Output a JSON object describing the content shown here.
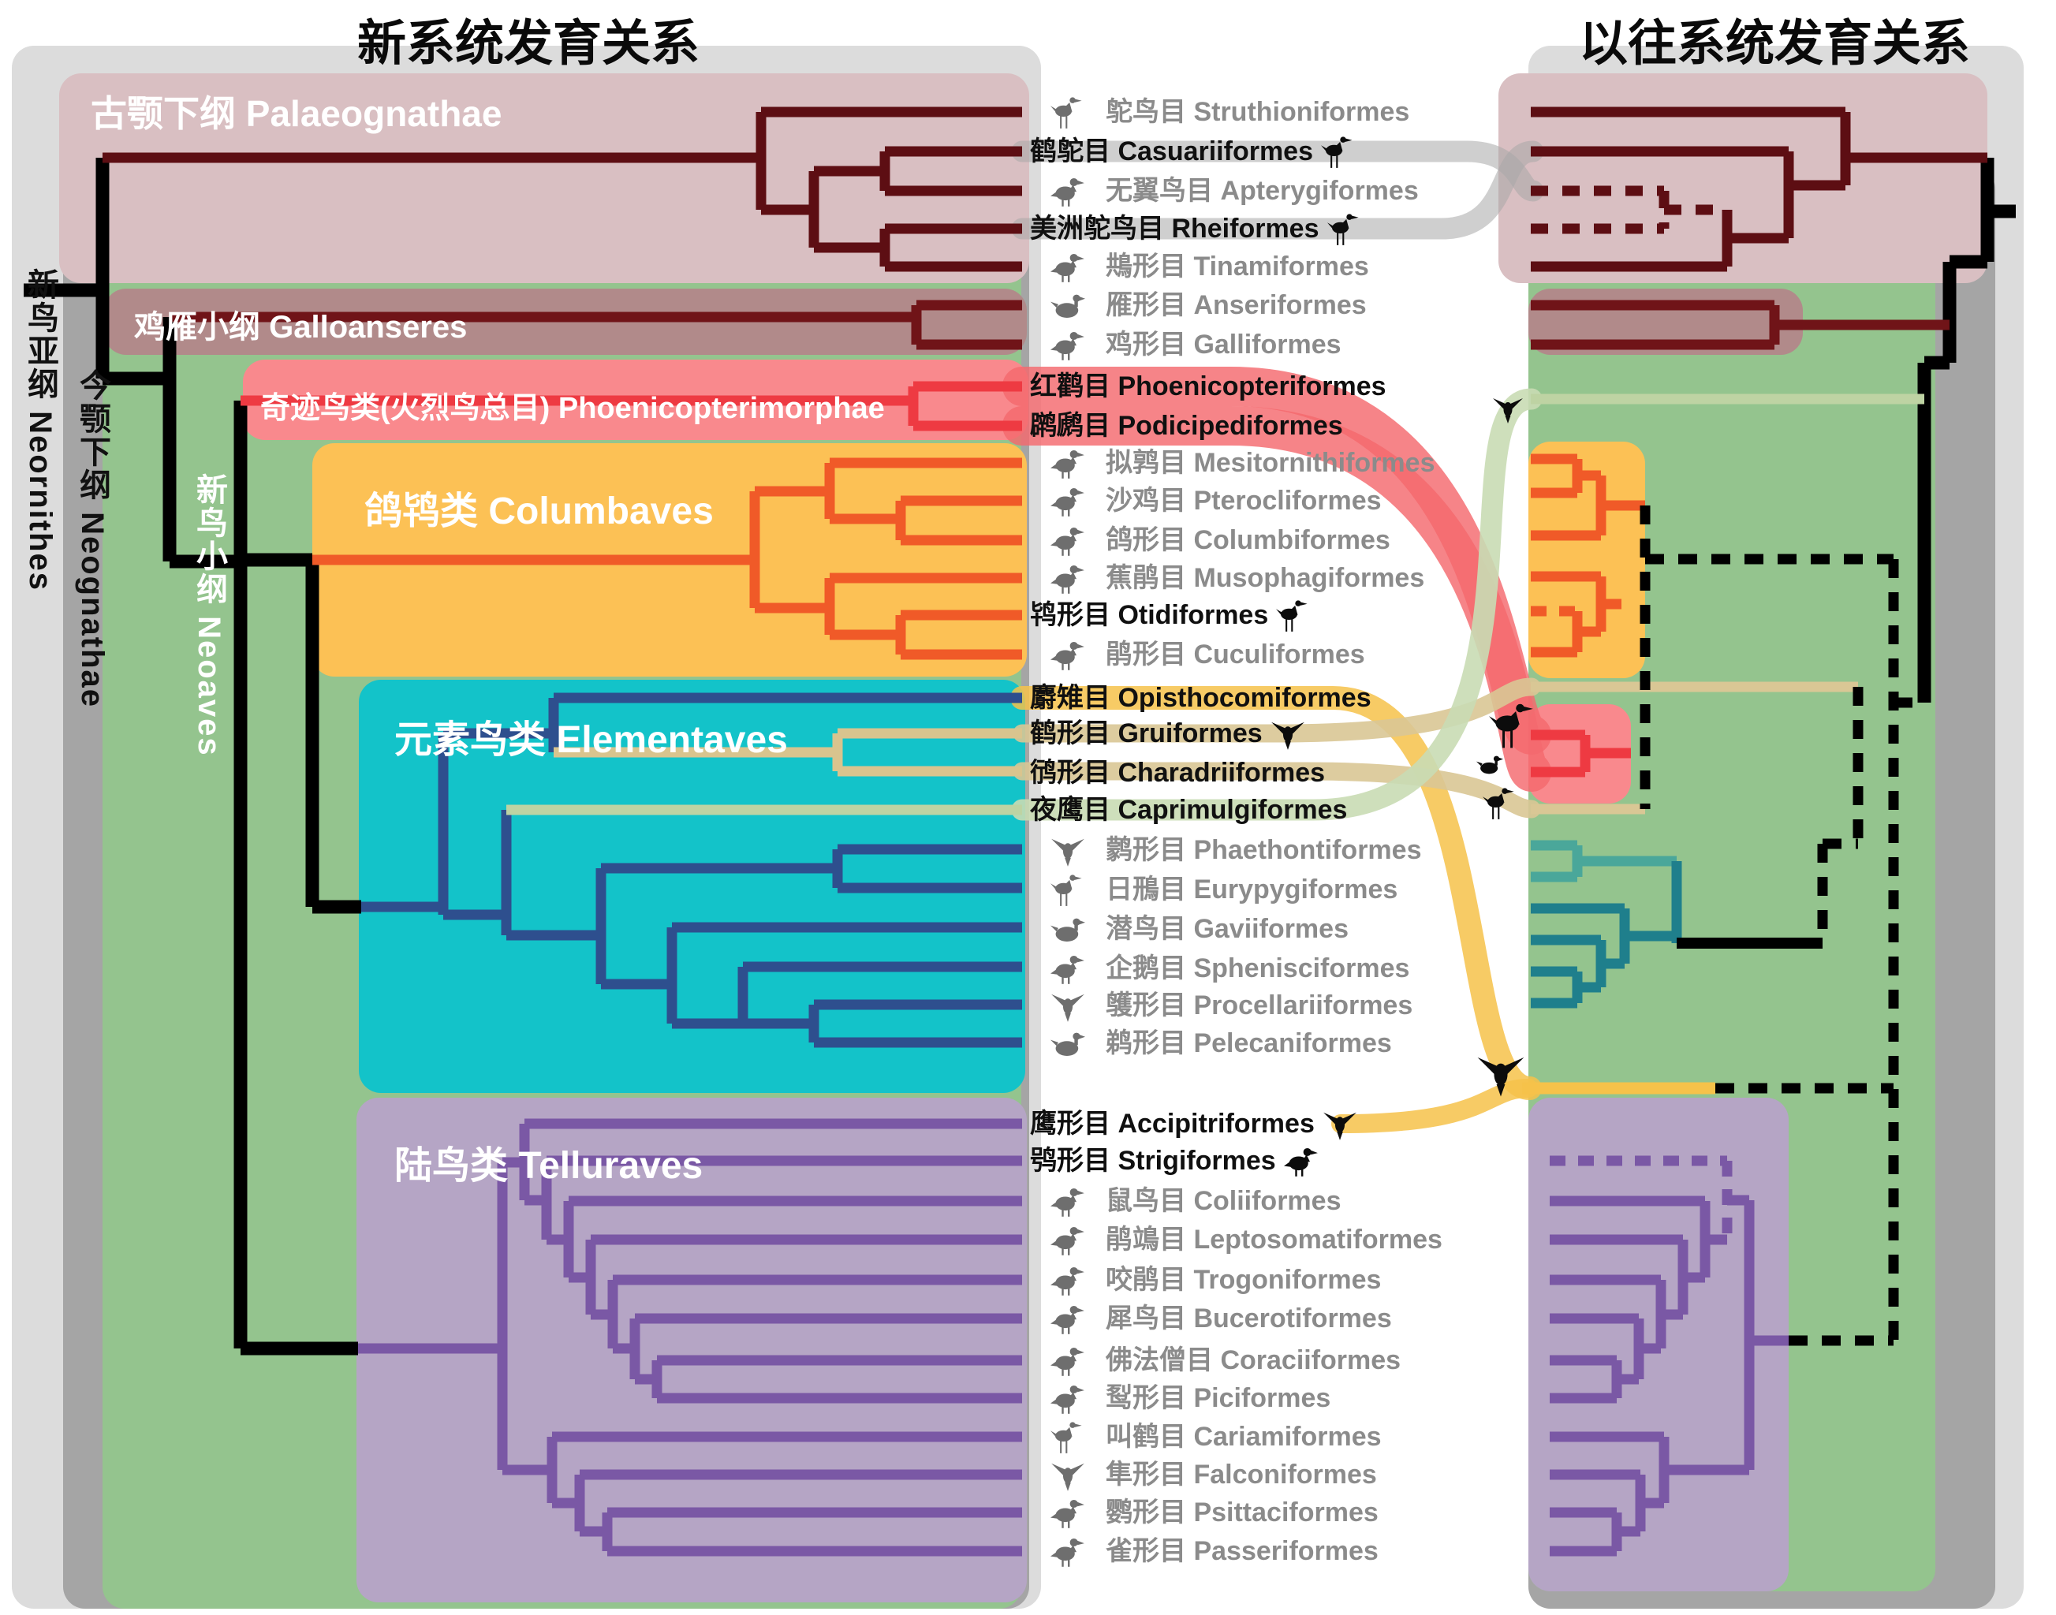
{
  "titles": {
    "left": "新系统发育关系",
    "right": "以往系统发育关系"
  },
  "lineage_labels": {
    "neornithes": "新鸟亚纲 Neornithes",
    "neognathae": "今颚下纲 Neognathae",
    "neoaves": "新鸟小纲 Neoaves"
  },
  "clades": {
    "palaeognathae": "古颚下纲 Palaeognathae",
    "galloanseres": "鸡雁小纲 Galloanseres",
    "phoenicopterimorphae": "奇迹鸟类(火烈鸟总目) Phoenicopterimorphae",
    "columbaves": "鸽鸨类 Columbaves",
    "elementaves": "元素鸟类 Elementaves",
    "telluraves": "陆鸟类 Telluraves"
  },
  "orders": [
    {
      "cn": "鸵鸟目",
      "latin": "Struthioniformes",
      "highlighted": false,
      "icon": "ostrich",
      "variant": "wader"
    },
    {
      "cn": "鹤鸵目",
      "latin": "Casuariiformes",
      "highlighted": true,
      "icon": "cassowary",
      "variant": "wader"
    },
    {
      "cn": "无翼鸟目",
      "latin": "Apterygiformes",
      "highlighted": false,
      "icon": "kiwi",
      "variant": "stand"
    },
    {
      "cn": "美洲鸵鸟目",
      "latin": "Rheiformes",
      "highlighted": true,
      "icon": "rhea",
      "variant": "wader"
    },
    {
      "cn": "䳍形目",
      "latin": "Tinamiformes",
      "highlighted": false,
      "icon": "tinamou",
      "variant": "stand"
    },
    {
      "cn": "雁形目",
      "latin": "Anseriformes",
      "highlighted": false,
      "icon": "goose",
      "variant": "duck"
    },
    {
      "cn": "鸡形目",
      "latin": "Galliformes",
      "highlighted": false,
      "icon": "rooster",
      "variant": "stand"
    },
    {
      "cn": "红鹳目",
      "latin": "Phoenicopteriformes",
      "highlighted": true,
      "icon": null,
      "variant": null
    },
    {
      "cn": "䴙䴘目",
      "latin": "Podicipediformes",
      "highlighted": true,
      "icon": null,
      "variant": null
    },
    {
      "cn": "拟鹑目",
      "latin": "Mesitornithiformes",
      "highlighted": false,
      "icon": "mesite",
      "variant": "stand"
    },
    {
      "cn": "沙鸡目",
      "latin": "Pterocliformes",
      "highlighted": false,
      "icon": "sandgrouse",
      "variant": "stand"
    },
    {
      "cn": "鸽形目",
      "latin": "Columbiformes",
      "highlighted": false,
      "icon": "pigeon",
      "variant": "stand"
    },
    {
      "cn": "蕉鹃目",
      "latin": "Musophagiformes",
      "highlighted": false,
      "icon": "turaco",
      "variant": "stand"
    },
    {
      "cn": "鸨形目",
      "latin": "Otidiformes",
      "highlighted": true,
      "icon": "bustard",
      "variant": "wader"
    },
    {
      "cn": "鹃形目",
      "latin": "Cuculiformes",
      "highlighted": false,
      "icon": "cuckoo",
      "variant": "stand"
    },
    {
      "cn": "麝雉目",
      "latin": "Opisthocomiformes",
      "highlighted": true,
      "icon": null,
      "variant": null
    },
    {
      "cn": "鹤形目",
      "latin": "Gruiformes",
      "highlighted": true,
      "icon": "crane",
      "variant": "fly"
    },
    {
      "cn": "鸻形目",
      "latin": "Charadriiformes",
      "highlighted": true,
      "icon": null,
      "variant": null
    },
    {
      "cn": "夜鹰目",
      "latin": "Caprimulgiformes",
      "highlighted": true,
      "icon": null,
      "variant": null
    },
    {
      "cn": "鹲形目",
      "latin": "Phaethontiformes",
      "highlighted": false,
      "icon": "tropicbird",
      "variant": "fly"
    },
    {
      "cn": "日鳽目",
      "latin": "Eurypygiformes",
      "highlighted": false,
      "icon": "sunbittern",
      "variant": "wader"
    },
    {
      "cn": "潜鸟目",
      "latin": "Gaviiformes",
      "highlighted": false,
      "icon": "loon",
      "variant": "duck"
    },
    {
      "cn": "企鹅目",
      "latin": "Sphenisciformes",
      "highlighted": false,
      "icon": "penguin",
      "variant": "stand"
    },
    {
      "cn": "鹱形目",
      "latin": "Procellariiformes",
      "highlighted": false,
      "icon": "albatross",
      "variant": "fly"
    },
    {
      "cn": "鹈形目",
      "latin": "Pelecaniformes",
      "highlighted": false,
      "icon": "pelican",
      "variant": "duck"
    },
    {
      "cn": "鹰形目",
      "latin": "Accipitriformes",
      "highlighted": true,
      "icon": "eagle",
      "variant": "fly"
    },
    {
      "cn": "鸮形目",
      "latin": "Strigiformes",
      "highlighted": true,
      "icon": "owl",
      "variant": "stand"
    },
    {
      "cn": "鼠鸟目",
      "latin": "Coliiformes",
      "highlighted": false,
      "icon": "mousebird",
      "variant": "stand"
    },
    {
      "cn": "鹃鴗目",
      "latin": "Leptosomatiformes",
      "highlighted": false,
      "icon": "cuckoo-roller",
      "variant": "stand"
    },
    {
      "cn": "咬鹃目",
      "latin": "Trogoniformes",
      "highlighted": false,
      "icon": "trogon",
      "variant": "stand"
    },
    {
      "cn": "犀鸟目",
      "latin": "Bucerotiformes",
      "highlighted": false,
      "icon": "hornbill",
      "variant": "stand"
    },
    {
      "cn": "佛法僧目",
      "latin": "Coraciiformes",
      "highlighted": false,
      "icon": "roller",
      "variant": "stand"
    },
    {
      "cn": "䴕形目",
      "latin": "Piciformes",
      "highlighted": false,
      "icon": "woodpecker",
      "variant": "stand"
    },
    {
      "cn": "叫鹤目",
      "latin": "Cariamiformes",
      "highlighted": false,
      "icon": "seriema",
      "variant": "wader"
    },
    {
      "cn": "隼形目",
      "latin": "Falconiformes",
      "highlighted": false,
      "icon": "falcon",
      "variant": "fly"
    },
    {
      "cn": "鹦形目",
      "latin": "Psittaciformes",
      "highlighted": false,
      "icon": "parrot",
      "variant": "stand"
    },
    {
      "cn": "雀形目",
      "latin": "Passeriformes",
      "highlighted": false,
      "icon": "passerine",
      "variant": "stand"
    }
  ],
  "colors": {
    "lightgray": "#dcdcdc",
    "gray": "#a5a5a5",
    "green": "#94c48e",
    "pink": "#d9bfc2",
    "mauve": "#b18a8a",
    "redblock": "#f9898d",
    "orangeblock": "#fcc155",
    "cyanblock": "#13c3c9",
    "purpleblock": "#b5a5c5",
    "tree-darkred": "#5d0e13",
    "tree-gallo": "#701418",
    "tree-red": "#ee3a42",
    "tree-orange": "#f05a28",
    "tree-navy": "#2e4f8e",
    "tree-tan": "#d9c48e",
    "tree-sage": "#bed3a3",
    "tree-purple": "#7a58a5",
    "teal-light": "#4aa79a",
    "teal-dark": "#1f7f8c",
    "ribbon-gray": "#a8a8a8",
    "ribbon-red": "#f4696e",
    "ribbon-yellow": "#f6c24a",
    "ribbon-khaki": "#d9c795",
    "ribbon-green": "#c9dcb4",
    "spine": "#000000"
  }
}
